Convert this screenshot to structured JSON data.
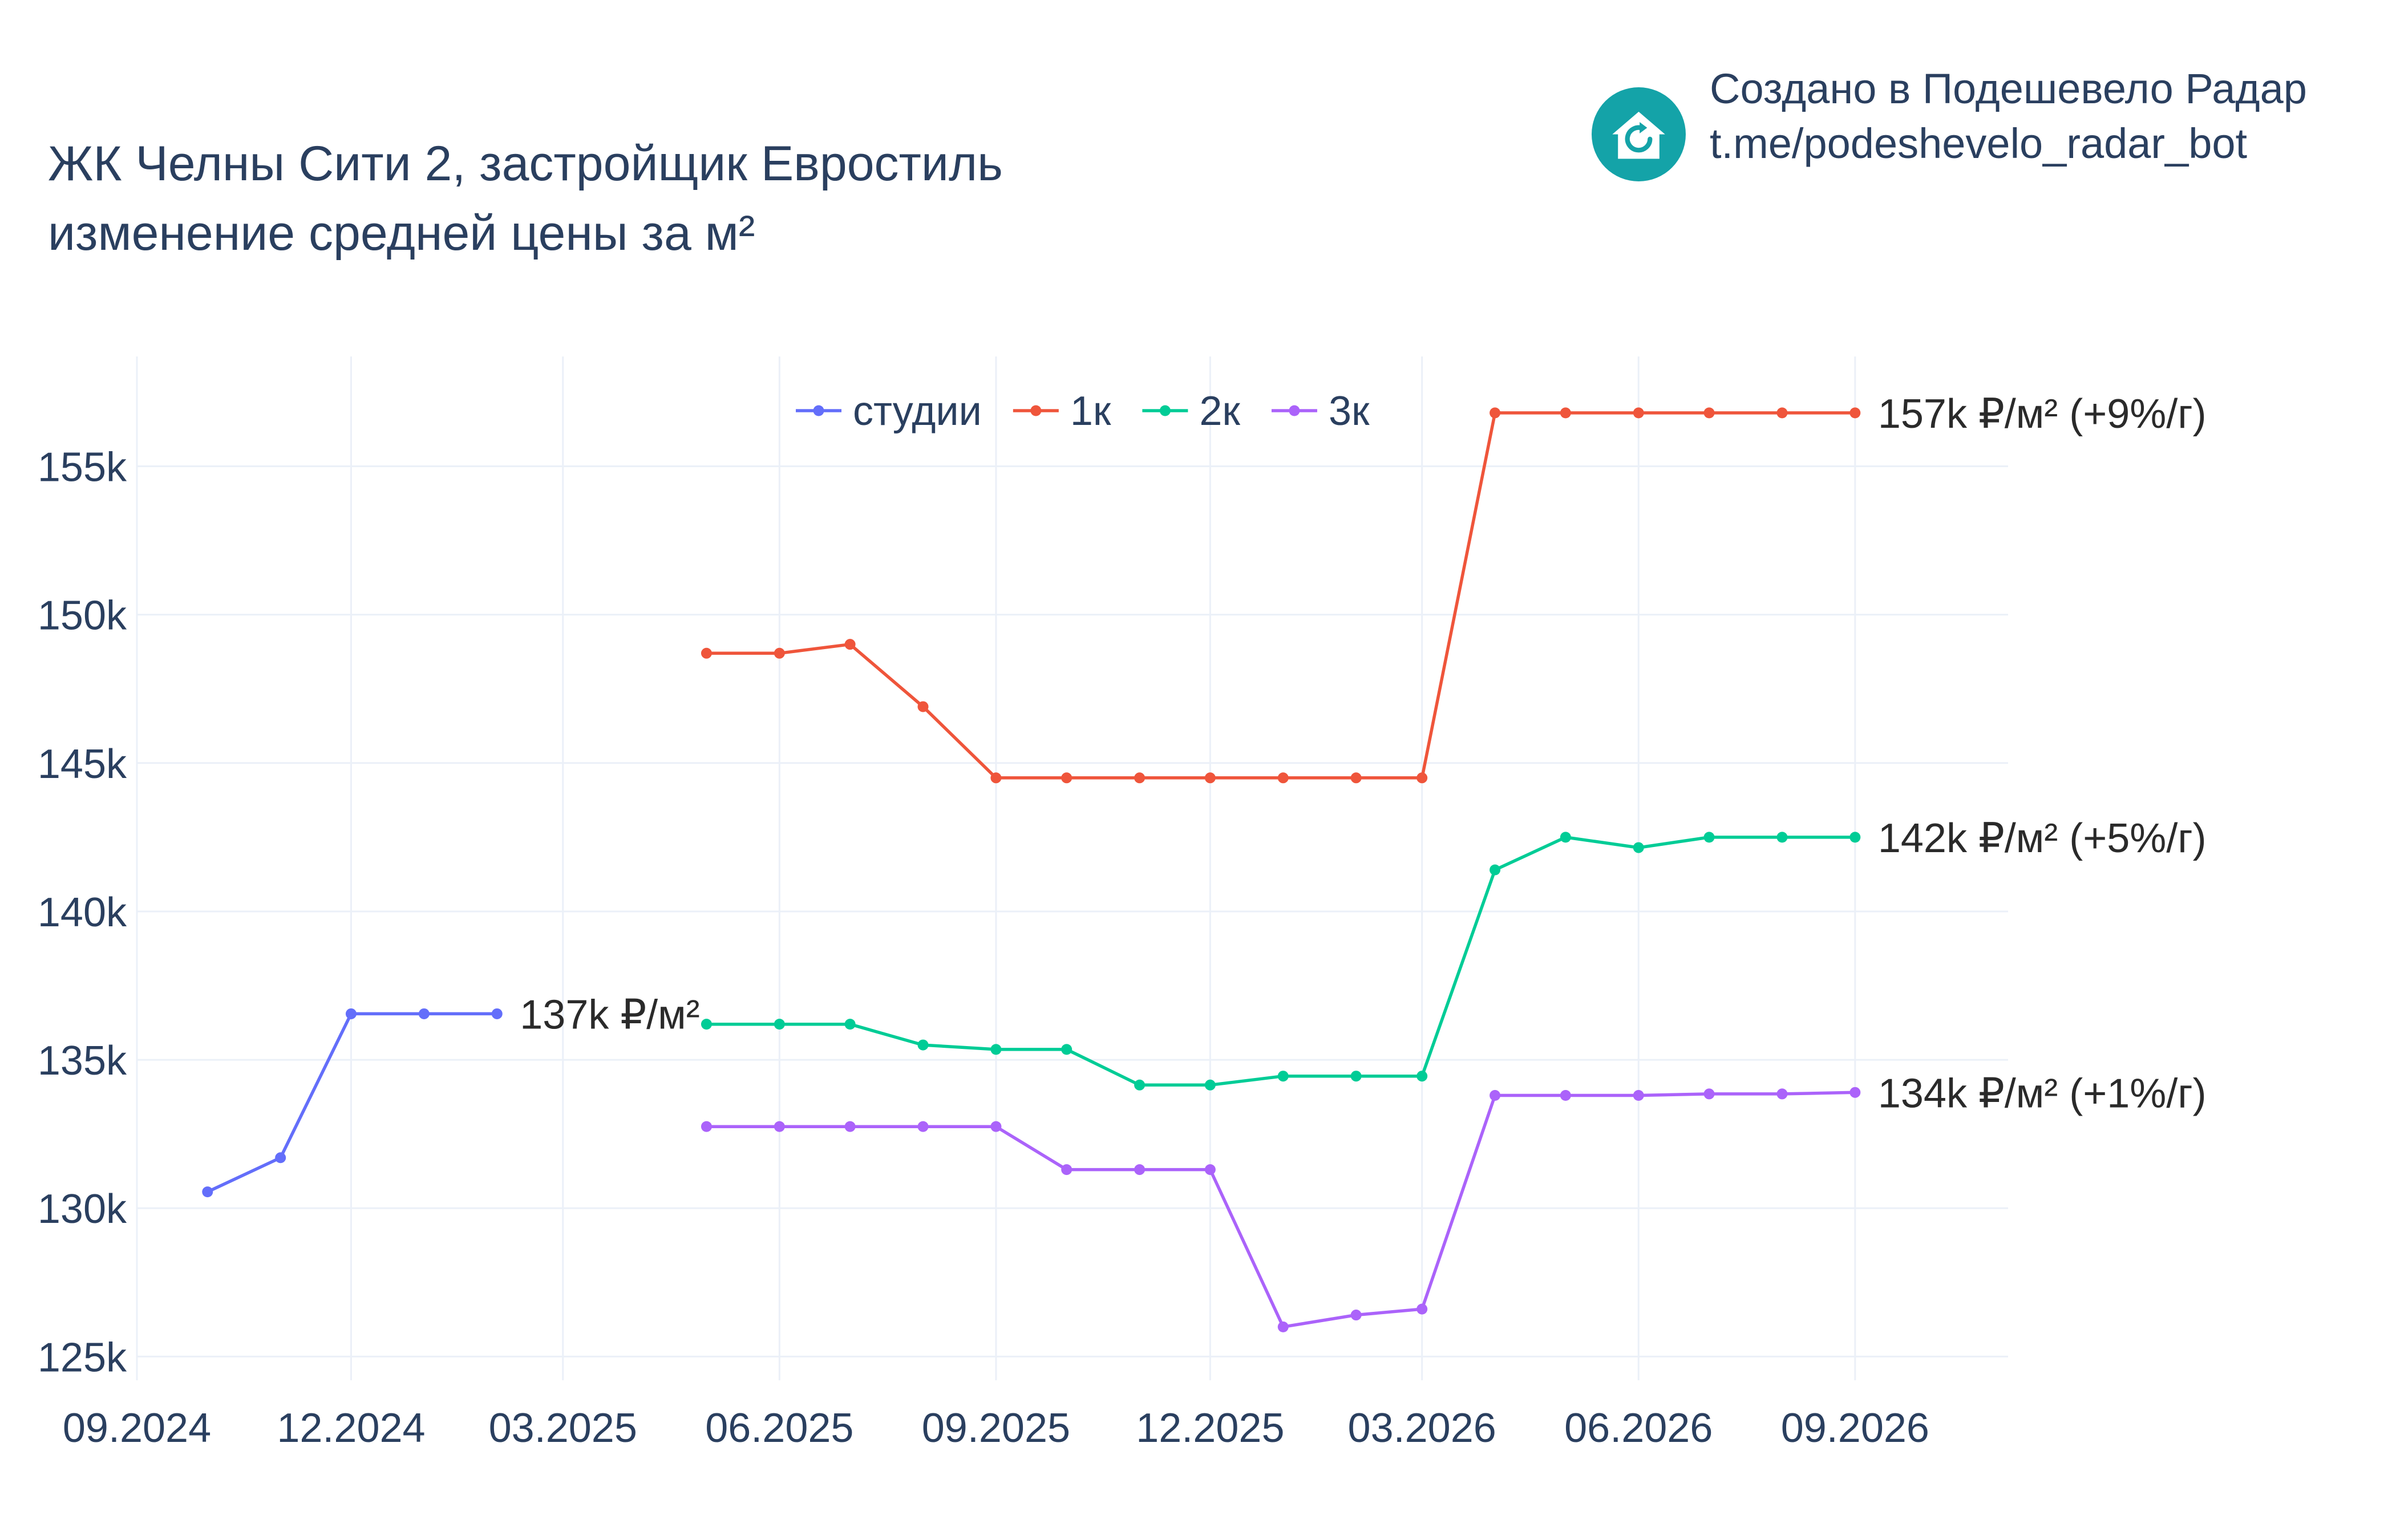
{
  "header": {
    "title_line1": "ЖК Челны Сити 2, застройщик Евростиль",
    "title_line2": "изменение средней цены за м²"
  },
  "brand": {
    "line1": "Создано в Подешевело Радар",
    "line2": "t.me/podeshevelo_radar_bot",
    "logo_icon": "house-refresh-icon",
    "logo_color": "#14a3a8"
  },
  "chart_data": {
    "type": "line",
    "title": "ЖК Челны Сити 2, застройщик Евростиль изменение средней цены за м²",
    "xlabel": "",
    "ylabel": "",
    "x_range": [
      "2024-09-01",
      "2026-11-05"
    ],
    "ylim": [
      124200,
      158700
    ],
    "x_ticks": [
      {
        "date": "2024-09-01",
        "label": "09.2024"
      },
      {
        "date": "2024-12-01",
        "label": "12.2024"
      },
      {
        "date": "2025-03-01",
        "label": "03.2025"
      },
      {
        "date": "2025-06-01",
        "label": "06.2025"
      },
      {
        "date": "2025-09-01",
        "label": "09.2025"
      },
      {
        "date": "2025-12-01",
        "label": "12.2025"
      },
      {
        "date": "2026-03-01",
        "label": "03.2026"
      },
      {
        "date": "2026-06-01",
        "label": "06.2026"
      },
      {
        "date": "2026-09-01",
        "label": "09.2026"
      }
    ],
    "y_ticks": [
      {
        "value": 125000,
        "label": "125k"
      },
      {
        "value": 130000,
        "label": "130k"
      },
      {
        "value": 135000,
        "label": "135k"
      },
      {
        "value": 140000,
        "label": "140k"
      },
      {
        "value": 145000,
        "label": "145k"
      },
      {
        "value": 150000,
        "label": "150k"
      },
      {
        "value": 155000,
        "label": "155k"
      }
    ],
    "grid": true,
    "legend_position": "top-center",
    "series": [
      {
        "name": "студии",
        "color": "#636efa",
        "x": [
          "2024-10-01",
          "2024-11-01",
          "2024-12-01",
          "2025-01-01",
          "2025-02-01"
        ],
        "y": [
          130550,
          131700,
          136550,
          136550,
          136550
        ],
        "end_label": "137k ₽/м²"
      },
      {
        "name": "1к",
        "color": "#ef553b",
        "x": [
          "2025-05-01",
          "2025-06-01",
          "2025-07-01",
          "2025-08-01",
          "2025-09-01",
          "2025-10-01",
          "2025-11-01",
          "2025-12-01",
          "2026-01-01",
          "2026-02-01",
          "2026-03-01",
          "2026-04-01",
          "2026-05-01",
          "2026-06-01",
          "2026-07-01",
          "2026-08-01",
          "2026-09-01"
        ],
        "y": [
          148700,
          148700,
          149000,
          146900,
          144500,
          144500,
          144500,
          144500,
          144500,
          144500,
          144500,
          156800,
          156800,
          156800,
          156800,
          156800,
          156800
        ],
        "end_label": "157k ₽/м² (+9%/г)"
      },
      {
        "name": "2к",
        "color": "#00cc96",
        "x": [
          "2025-05-01",
          "2025-06-01",
          "2025-07-01",
          "2025-08-01",
          "2025-09-01",
          "2025-10-01",
          "2025-11-01",
          "2025-12-01",
          "2026-01-01",
          "2026-02-01",
          "2026-03-01",
          "2026-04-01",
          "2026-05-01",
          "2026-06-01",
          "2026-07-01",
          "2026-08-01",
          "2026-09-01"
        ],
        "y": [
          136200,
          136200,
          136200,
          135500,
          135350,
          135350,
          134150,
          134150,
          134450,
          134450,
          134450,
          141400,
          142500,
          142150,
          142500,
          142500,
          142500
        ],
        "end_label": "142k ₽/м² (+5%/г)"
      },
      {
        "name": "3к",
        "color": "#ab63fa",
        "x": [
          "2025-05-01",
          "2025-06-01",
          "2025-07-01",
          "2025-08-01",
          "2025-09-01",
          "2025-10-01",
          "2025-11-01",
          "2025-12-01",
          "2026-01-01",
          "2026-02-01",
          "2026-03-01",
          "2026-04-01",
          "2026-05-01",
          "2026-06-01",
          "2026-07-01",
          "2026-08-01",
          "2026-09-01"
        ],
        "y": [
          132750,
          132750,
          132750,
          132750,
          132750,
          131300,
          131300,
          131300,
          126000,
          126400,
          126600,
          133800,
          133800,
          133800,
          133850,
          133850,
          133900
        ],
        "end_label": "134k ₽/м² (+1%/г)"
      }
    ]
  }
}
